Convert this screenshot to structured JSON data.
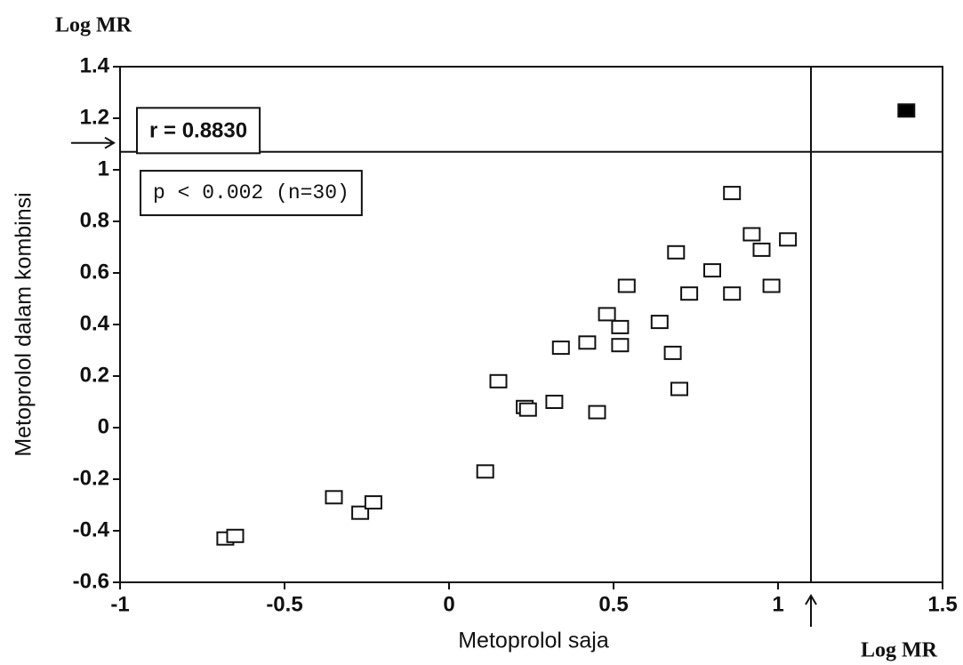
{
  "chart_data": {
    "type": "scatter",
    "y_unit_label": "Log MR",
    "x_unit_label": "Log MR",
    "xlabel": "Metoprolol saja",
    "ylabel": "Metoprolol dalam kombinsi",
    "annotations": [
      "r = 0.8830",
      "p < 0.002 (n=30)"
    ],
    "xlim": [
      -1,
      1.5
    ],
    "xticks": [
      -1,
      -0.5,
      0,
      0.5,
      1,
      1.5
    ],
    "ylim": [
      -0.6,
      1.4
    ],
    "yticks": [
      -0.6,
      -0.4,
      -0.2,
      0,
      0.2,
      0.4,
      0.6,
      0.8,
      1,
      1.2,
      1.4
    ],
    "reference_lines": {
      "x": 1.1,
      "y": 1.07
    },
    "series": [
      {
        "color": "#ffffff",
        "x": [
          -0.68,
          -0.65,
          -0.35,
          -0.27,
          -0.23,
          0.11,
          0.15,
          0.23,
          0.24,
          0.32,
          0.34,
          0.42,
          0.45,
          0.48,
          0.52,
          0.52,
          0.54,
          0.64,
          0.68,
          0.69,
          0.7,
          0.73,
          0.8,
          0.86,
          0.86,
          0.92,
          0.95,
          0.98,
          1.03
        ],
        "values": [
          -0.43,
          -0.42,
          -0.27,
          -0.33,
          -0.29,
          -0.17,
          0.18,
          0.08,
          0.07,
          0.1,
          0.31,
          0.33,
          0.06,
          0.44,
          0.39,
          0.32,
          0.55,
          0.41,
          0.29,
          0.68,
          0.15,
          0.52,
          0.61,
          0.91,
          0.52,
          0.75,
          0.69,
          0.55,
          0.73
        ]
      },
      {
        "color": "#000000",
        "x": [
          1.39
        ],
        "values": [
          1.23
        ]
      }
    ]
  }
}
